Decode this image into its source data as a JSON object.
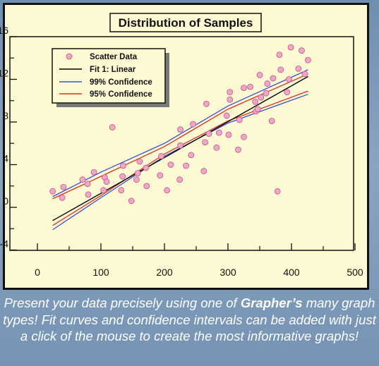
{
  "caption": {
    "pre": "Present your data precisely using one of ",
    "bold": "Grapher’s",
    "post": " many graph types! Fit curves and confidence intervals can be added with just a click of the mouse to create the most informative graphs!"
  },
  "chart_data": {
    "type": "scatter",
    "title": "Distribution of Samples",
    "xlabel": "",
    "ylabel": "",
    "xlim": [
      0,
      500
    ],
    "ylim": [
      -4,
      16
    ],
    "x_ticks": [
      0,
      100,
      200,
      300,
      400,
      500
    ],
    "y_ticks": [
      -4,
      0,
      4,
      8,
      12,
      16
    ],
    "grid": false,
    "legend_position": "top-left",
    "colors": {
      "panel_background": "#fdf9d3",
      "marker_fill": "#f4a6c8",
      "marker_stroke": "#b05a86",
      "linear_fit": "#000000",
      "confidence_99": "#3a4fd6",
      "confidence_95": "#e0301e"
    },
    "legend": [
      {
        "label": "Scatter Data",
        "kind": "marker"
      },
      {
        "label": "Fit 1: Linear",
        "kind": "line",
        "color": "#000000"
      },
      {
        "label": "99% Confidence",
        "kind": "line",
        "color": "#3a4fd6"
      },
      {
        "label": "95% Confidence",
        "kind": "line",
        "color": "#e0301e"
      }
    ],
    "series": [
      {
        "name": "Scatter Data",
        "points": [
          [
            24,
            1.5
          ],
          [
            39,
            0.9
          ],
          [
            41,
            1.9
          ],
          [
            71,
            2.6
          ],
          [
            79,
            2.2
          ],
          [
            80,
            1.2
          ],
          [
            89,
            3.3
          ],
          [
            104,
            1.6
          ],
          [
            106,
            2.8
          ],
          [
            109,
            2.4
          ],
          [
            118,
            7.5
          ],
          [
            132,
            1.6
          ],
          [
            134,
            2.9
          ],
          [
            135,
            3.9
          ],
          [
            148,
            0.6
          ],
          [
            156,
            2.6
          ],
          [
            158,
            3.2
          ],
          [
            161,
            4.3
          ],
          [
            171,
            3.7
          ],
          [
            172,
            2.0
          ],
          [
            193,
            3.0
          ],
          [
            195,
            4.8
          ],
          [
            204,
            1.6
          ],
          [
            210,
            4.0
          ],
          [
            224,
            2.6
          ],
          [
            225,
            5.8
          ],
          [
            225,
            7.3
          ],
          [
            234,
            3.9
          ],
          [
            242,
            4.9
          ],
          [
            245,
            7.8
          ],
          [
            262,
            3.4
          ],
          [
            264,
            6.1
          ],
          [
            266,
            9.7
          ],
          [
            270,
            6.9
          ],
          [
            282,
            5.6
          ],
          [
            286,
            7.0
          ],
          [
            298,
            8.6
          ],
          [
            301,
            6.8
          ],
          [
            303,
            10.8
          ],
          [
            303,
            10.1
          ],
          [
            316,
            5.4
          ],
          [
            318,
            8.2
          ],
          [
            325,
            11.2
          ],
          [
            325,
            6.6
          ],
          [
            335,
            11.3
          ],
          [
            343,
            9.9
          ],
          [
            344,
            9.0
          ],
          [
            347,
            9.2
          ],
          [
            350,
            12.4
          ],
          [
            352,
            10.3
          ],
          [
            360,
            10.7
          ],
          [
            362,
            11.6
          ],
          [
            369,
            8.1
          ],
          [
            371,
            12.1
          ],
          [
            378,
            1.5
          ],
          [
            381,
            14.3
          ],
          [
            383,
            12.9
          ],
          [
            393,
            10.8
          ],
          [
            396,
            12.0
          ],
          [
            399,
            15.0
          ],
          [
            411,
            13.0
          ],
          [
            416,
            14.7
          ],
          [
            421,
            12.5
          ],
          [
            426,
            13.8
          ]
        ]
      }
    ],
    "fit_linear": {
      "intercept": -2.05,
      "slope": 0.0336,
      "x_range": [
        24,
        426
      ]
    },
    "confidence_99": {
      "upper": [
        [
          24,
          1.0
        ],
        [
          100,
          3.3
        ],
        [
          200,
          6.0
        ],
        [
          300,
          9.5
        ],
        [
          426,
          12.9
        ]
      ],
      "lower": [
        [
          24,
          -2.1
        ],
        [
          100,
          0.9
        ],
        [
          200,
          4.8
        ],
        [
          300,
          7.9
        ],
        [
          426,
          10.6
        ]
      ]
    },
    "confidence_95": {
      "upper": [
        [
          24,
          0.8
        ],
        [
          100,
          2.9
        ],
        [
          200,
          5.7
        ],
        [
          300,
          9.2
        ],
        [
          426,
          12.5
        ]
      ],
      "lower": [
        [
          24,
          -1.7
        ],
        [
          100,
          1.1
        ],
        [
          200,
          5.0
        ],
        [
          300,
          8.1
        ],
        [
          426,
          10.9
        ]
      ]
    }
  }
}
